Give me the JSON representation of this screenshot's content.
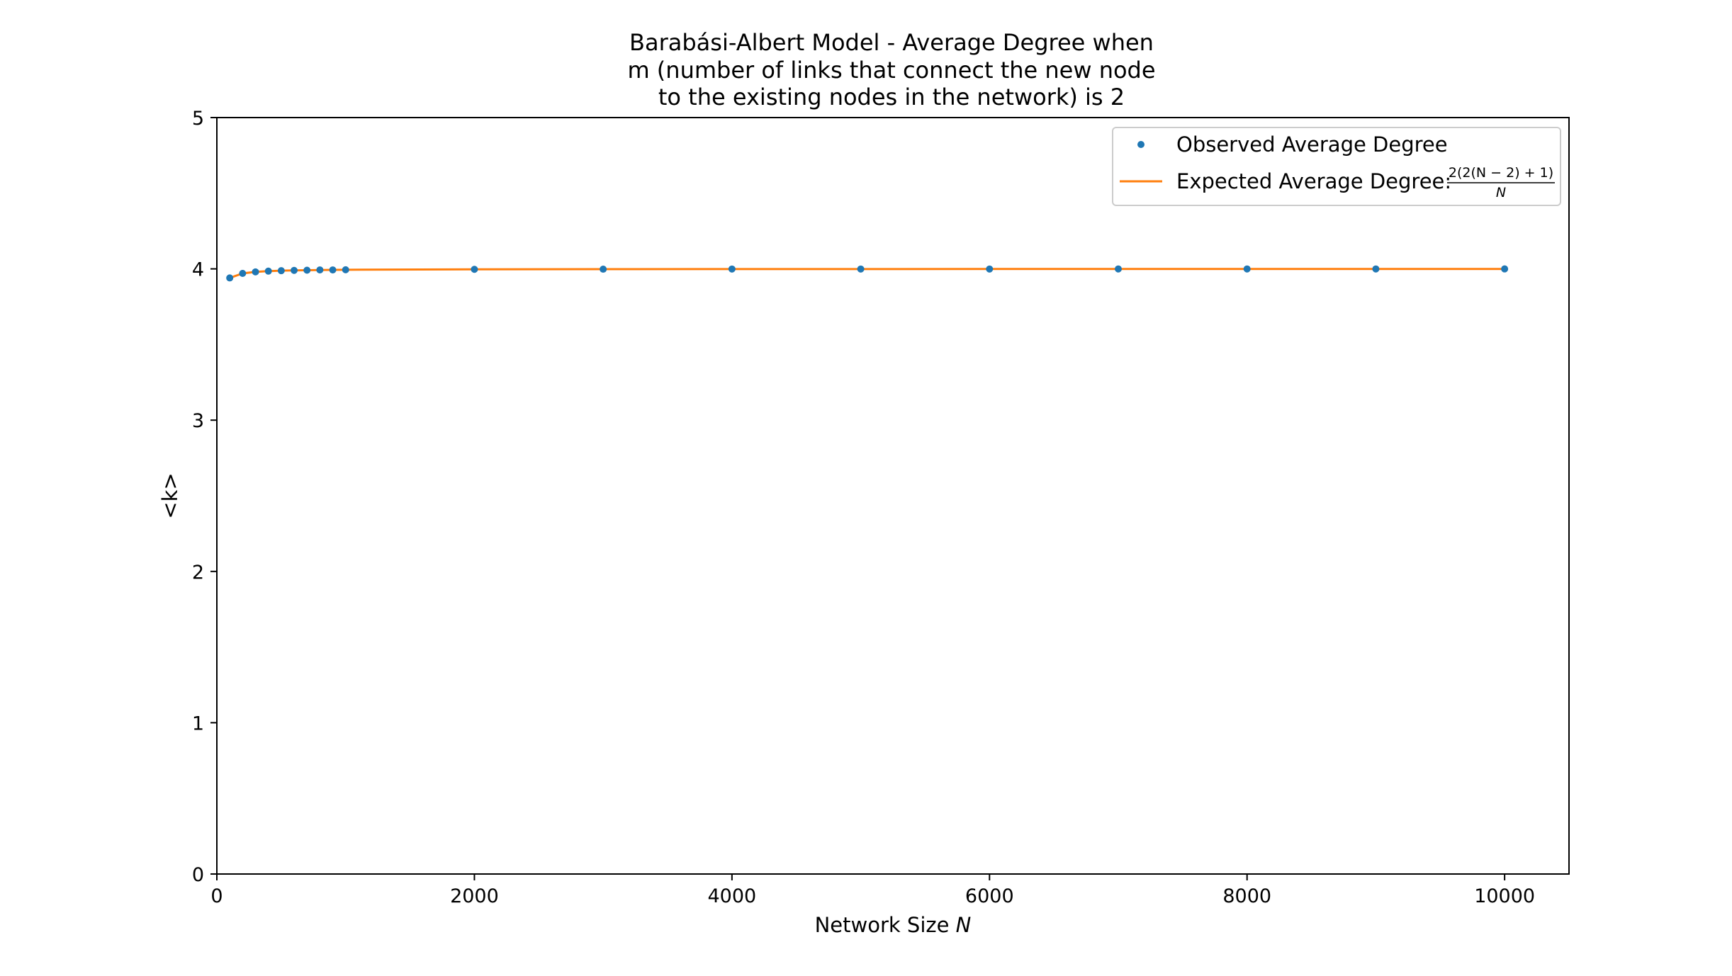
{
  "chart_data": {
    "type": "scatter",
    "title_lines": [
      "Barabási-Albert Model - Average Degree when",
      "m (number of links that connect the new node",
      "to the existing nodes in the network) is 2"
    ],
    "xlabel": "Network Size",
    "xlabel_var": "N",
    "ylabel": "<k>",
    "xlim": [
      0,
      10500
    ],
    "ylim": [
      0,
      5
    ],
    "xticks": [
      0,
      2000,
      4000,
      6000,
      8000,
      10000
    ],
    "yticks": [
      0,
      1,
      2,
      3,
      4,
      5
    ],
    "grid": false,
    "legend_position": "top-right",
    "colors": {
      "observed": "#1f77b4",
      "expected": "#ff7f0e"
    },
    "series": [
      {
        "name": "Observed Average Degree",
        "kind": "scatter",
        "x": [
          100,
          200,
          300,
          400,
          500,
          600,
          700,
          800,
          900,
          1000,
          2000,
          3000,
          4000,
          5000,
          6000,
          7000,
          8000,
          9000,
          10000
        ],
        "y": [
          3.94,
          3.97,
          3.98,
          3.985,
          3.988,
          3.99,
          3.991,
          3.993,
          3.993,
          3.994,
          3.997,
          3.998,
          3.999,
          3.999,
          3.999,
          3.9995,
          3.9995,
          3.9995,
          3.9996
        ]
      },
      {
        "name": "Expected Average Degree:",
        "formula_numerator": "2(2(N − 2) + 1)",
        "formula_denominator": "N",
        "kind": "line",
        "x": [
          100,
          200,
          300,
          400,
          500,
          600,
          700,
          800,
          900,
          1000,
          2000,
          3000,
          4000,
          5000,
          6000,
          7000,
          8000,
          9000,
          10000
        ],
        "y": [
          3.94,
          3.97,
          3.98,
          3.985,
          3.988,
          3.99,
          3.9914,
          3.9925,
          3.9933,
          3.994,
          3.997,
          3.998,
          3.9985,
          3.9988,
          3.999,
          3.9991,
          3.9993,
          3.9993,
          3.9994
        ]
      }
    ]
  }
}
